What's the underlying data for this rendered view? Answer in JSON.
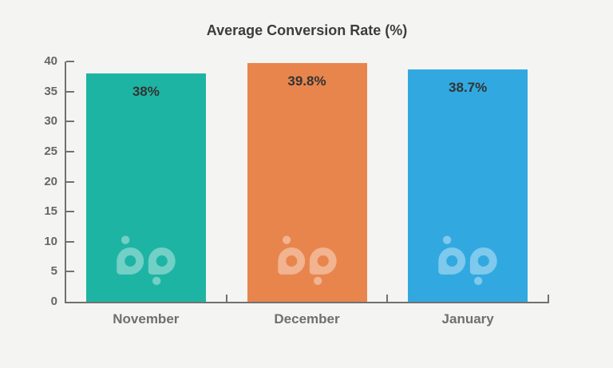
{
  "background_color": "#f4f4f2",
  "chart_data": {
    "type": "bar",
    "title": "Average Conversion Rate (%)",
    "categories": [
      "November",
      "December",
      "January"
    ],
    "values": [
      38,
      39.8,
      38.7
    ],
    "value_labels": [
      "38%",
      "39.8%",
      "38.7%"
    ],
    "series": [
      {
        "name": "Average Conversion Rate",
        "values": [
          38,
          39.8,
          38.7
        ]
      }
    ],
    "bar_colors": [
      "#1eb4a4",
      "#e8854d",
      "#31a9e0"
    ],
    "xlabel": "",
    "ylabel": "",
    "ylim": [
      0,
      40
    ],
    "y_ticks": [
      0,
      5,
      10,
      15,
      20,
      25,
      30,
      35,
      40
    ],
    "grid": false,
    "legend": false,
    "title_color": "#3d3d3d",
    "axis_color": "#717171",
    "value_label_color": "#333333",
    "y_tick_label_color": "#666666",
    "x_tick_label_color": "#6f6f6f",
    "watermark_icon": "bp-logo",
    "watermark_color": "rgba(255,255,255,0.38)"
  }
}
